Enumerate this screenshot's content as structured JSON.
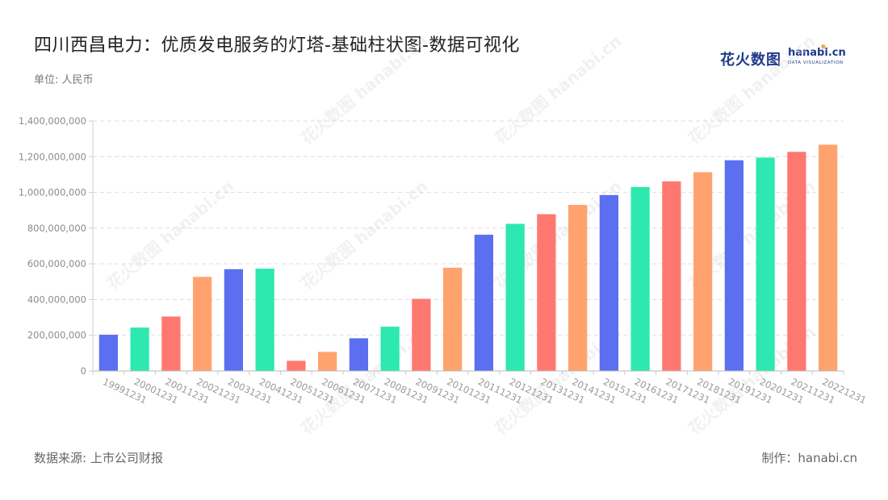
{
  "header": {
    "title": "四川西昌电力：优质发电服务的灯塔-基础柱状图-数据可视化",
    "unit": "单位: 人民币"
  },
  "logo": {
    "cn": "花火数图",
    "en": "hanabi.cn",
    "sub": "DATA VISUALIZATION",
    "watermark": "花火数图 hanabi.cn"
  },
  "footer": {
    "source": "数据来源: 上市公司财报",
    "credit": "制作：hanabi.cn"
  },
  "chart_data": {
    "type": "bar",
    "title": "四川西昌电力：优质发电服务的灯塔-基础柱状图-数据可视化",
    "xlabel": "",
    "ylabel": "",
    "ylim": [
      0,
      1400000000
    ],
    "yticks": [
      0,
      200000000,
      400000000,
      600000000,
      800000000,
      1000000000,
      1200000000,
      1400000000
    ],
    "grid": true,
    "categories": [
      "19991231",
      "20001231",
      "20011231",
      "20021231",
      "20031231",
      "20041231",
      "20051231",
      "20061231",
      "20071231",
      "20081231",
      "20091231",
      "20101231",
      "20111231",
      "20121231",
      "20131231",
      "20141231",
      "20151231",
      "20161231",
      "20171231",
      "20181231",
      "20191231",
      "20201231",
      "20211231",
      "20221231"
    ],
    "values": [
      203000000,
      243000000,
      305000000,
      527000000,
      570000000,
      573000000,
      57000000,
      107000000,
      183000000,
      248000000,
      404000000,
      578000000,
      763000000,
      824000000,
      878000000,
      930000000,
      985000000,
      1030000000,
      1062000000,
      1113000000,
      1180000000,
      1195000000,
      1227000000,
      1267000000
    ],
    "colors": [
      "#5b6ff0",
      "#2de8b0",
      "#ff7870",
      "#ffa26e"
    ]
  }
}
